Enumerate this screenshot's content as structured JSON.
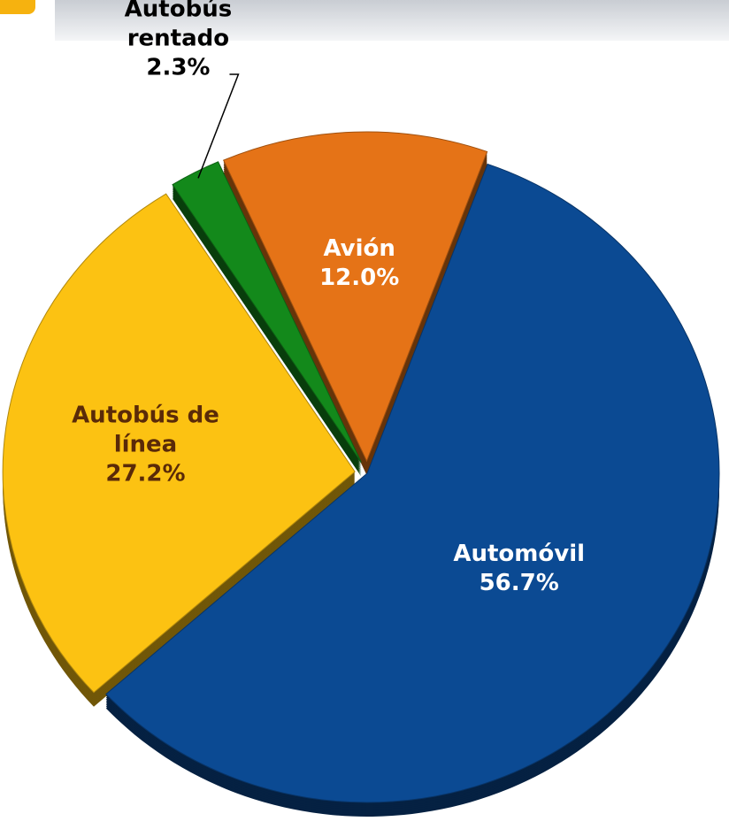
{
  "chart_data": {
    "type": "pie",
    "categories": [
      "Automóvil",
      "Autobús de línea",
      "Autobús rentado",
      "Avión"
    ],
    "values": [
      56.7,
      27.2,
      2.3,
      12.0
    ],
    "value_labels": [
      "56.7%",
      "27.2%",
      "2.3%",
      "12.0%"
    ],
    "colors": [
      "#0b4a93",
      "#fcc212",
      "#13891b",
      "#e57317"
    ]
  }
}
